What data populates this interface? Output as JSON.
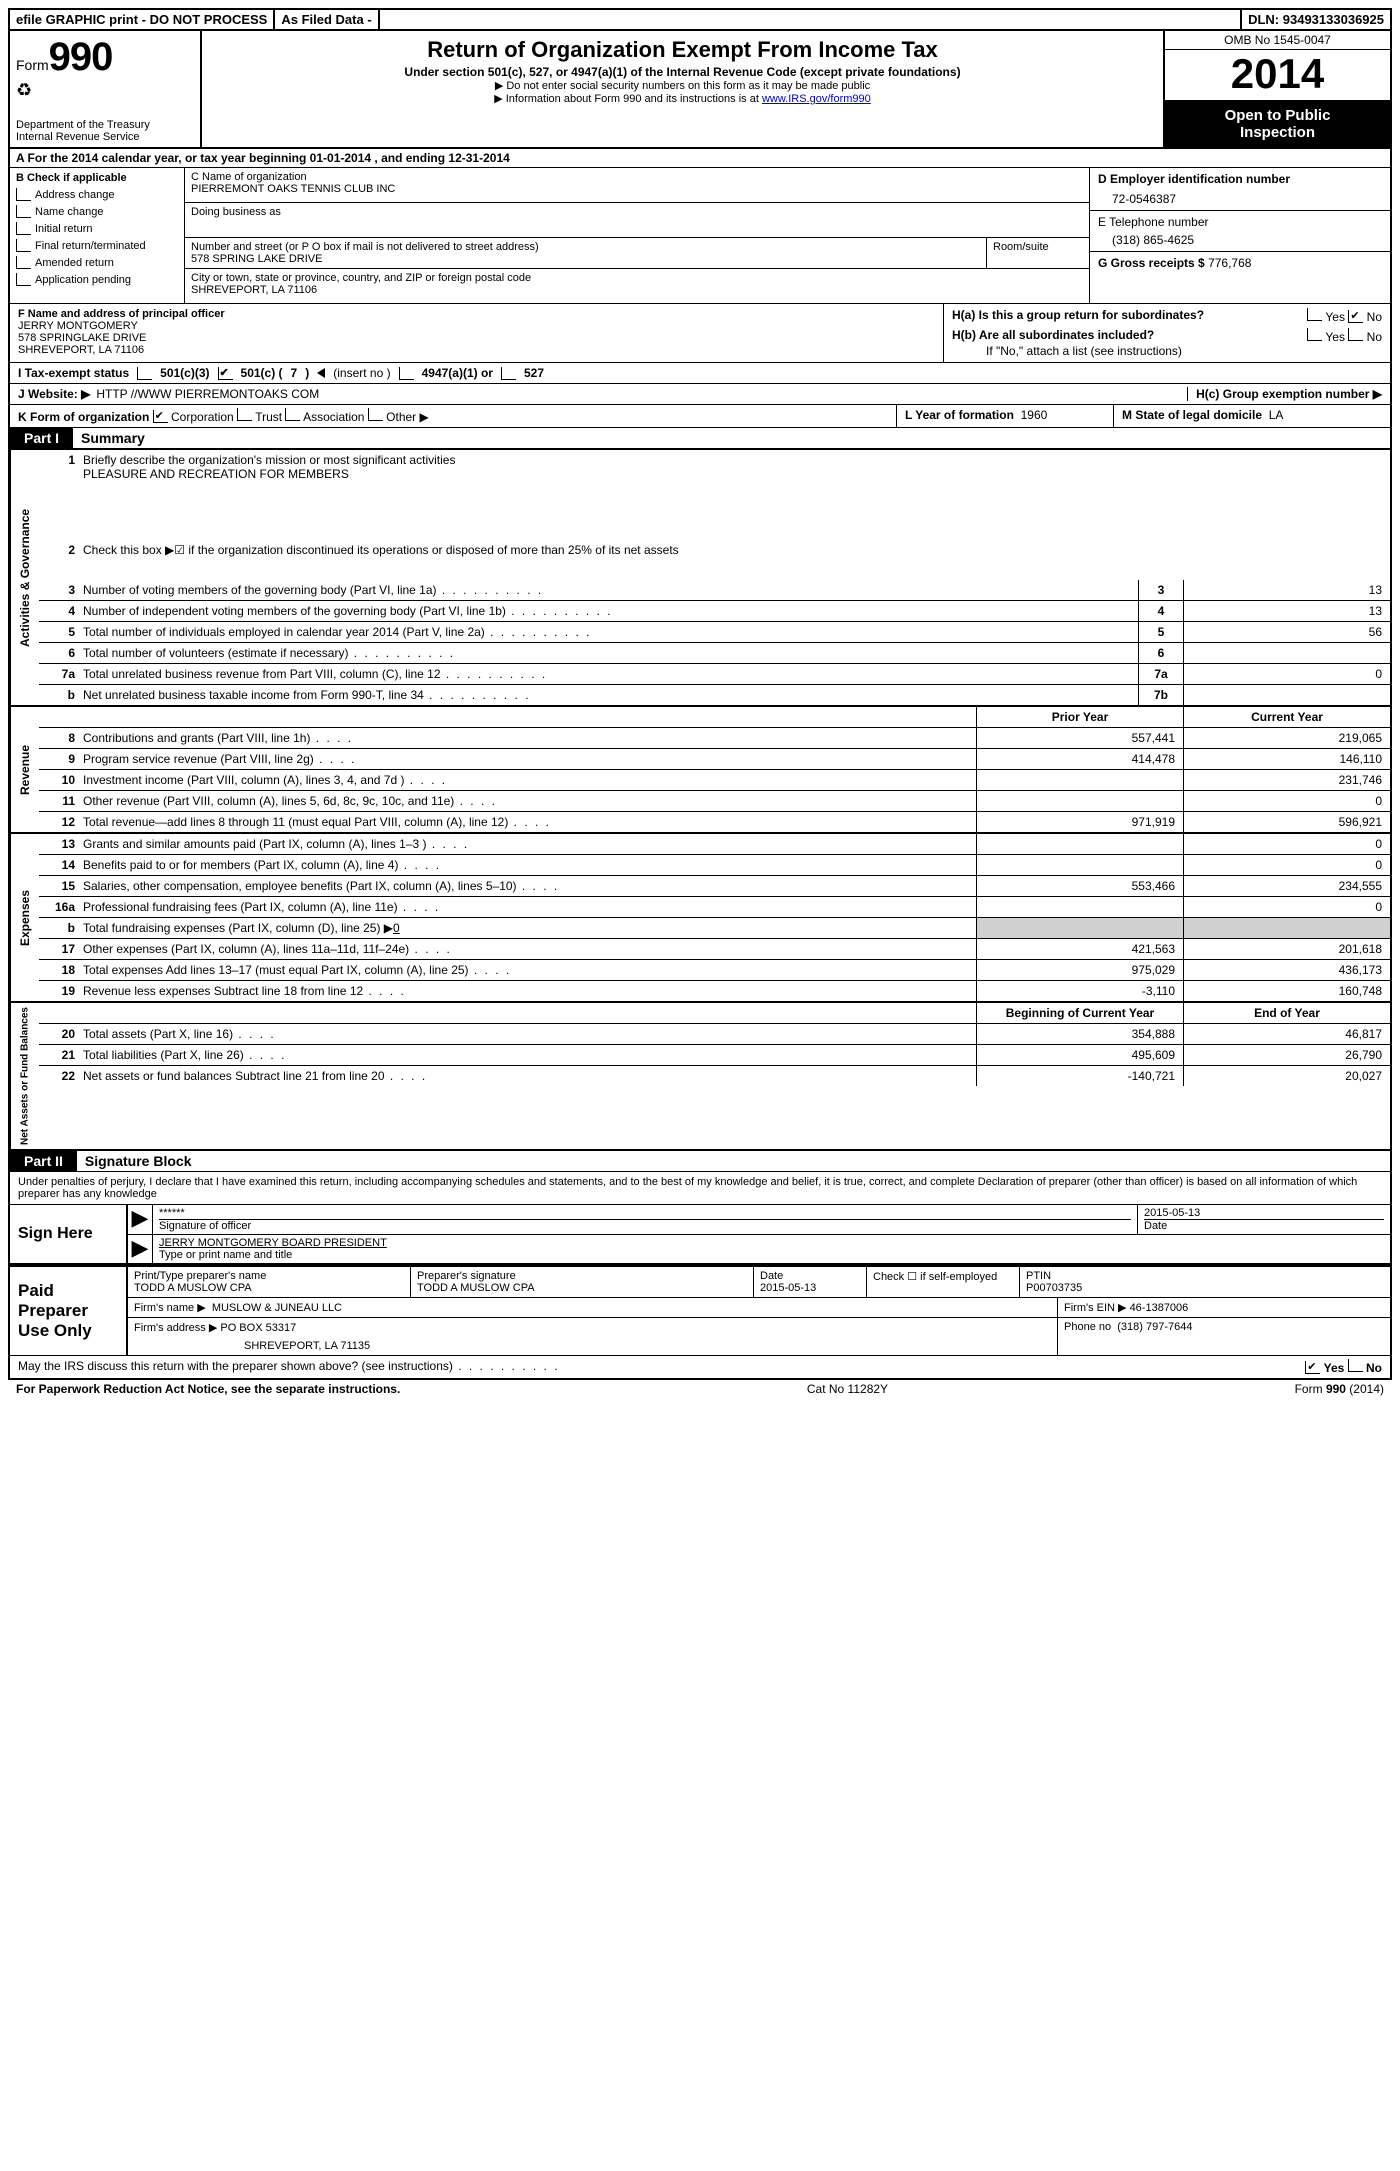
{
  "top_bar": {
    "efile": "efile GRAPHIC print - DO NOT PROCESS",
    "asfiled": "As Filed Data -",
    "dln_label": "DLN:",
    "dln": "93493133036925"
  },
  "header": {
    "form_label": "Form",
    "form_number": "990",
    "dept": "Department of the Treasury",
    "irs": "Internal Revenue Service",
    "title": "Return of Organization Exempt From Income Tax",
    "subtitle": "Under section 501(c), 527, or 4947(a)(1) of the Internal Revenue Code (except private foundations)",
    "note1": "▶ Do not enter social security numbers on this form as it may be made public",
    "note2_prefix": "▶ Information about Form 990 and its instructions is at ",
    "note2_link": "www.IRS.gov/form990",
    "omb": "OMB No 1545-0047",
    "year": "2014",
    "open1": "Open to Public",
    "open2": "Inspection"
  },
  "row_a": {
    "prefix": "A  For the 2014 calendar year, or tax year beginning ",
    "begin": "01-01-2014",
    "mid": "   , and ending ",
    "end": "12-31-2014"
  },
  "col_b": {
    "title": "B  Check if applicable",
    "items": [
      "Address change",
      "Name change",
      "Initial return",
      "Final return/terminated",
      "Amended return",
      "Application pending"
    ]
  },
  "col_c": {
    "name_label": "C Name of organization",
    "name": "PIERREMONT OAKS TENNIS CLUB INC",
    "dba_label": "Doing business as",
    "addr_label": "Number and street (or P O  box if mail is not delivered to street address)",
    "addr": "578 SPRING LAKE DRIVE",
    "room_label": "Room/suite",
    "city_label": "City or town, state or province, country, and ZIP or foreign postal code",
    "city": "SHREVEPORT, LA  71106"
  },
  "col_d": {
    "ein_label": "D Employer identification number",
    "ein": "72-0546387",
    "phone_label": "E Telephone number",
    "phone": "(318) 865-4625",
    "gross_label": "G Gross receipts $",
    "gross": "776,768"
  },
  "f_block": {
    "label": "F  Name and address of principal officer",
    "name": "JERRY MONTGOMERY",
    "addr1": "578 SPRINGLAKE DRIVE",
    "addr2": "SHREVEPORT, LA  71106"
  },
  "h_block": {
    "ha": "H(a)  Is this a group return for subordinates?",
    "hb": "H(b)  Are all subordinates included?",
    "hb_note": "If \"No,\" attach a list  (see instructions)",
    "hc": "H(c)  Group exemption number ▶",
    "yes": "Yes",
    "no": "No"
  },
  "line_i": {
    "label": "I  Tax-exempt status",
    "opt1": "501(c)(3)",
    "opt2_a": "501(c) (",
    "opt2_num": "7",
    "opt2_b": ") ",
    "insert": "(insert no )",
    "opt3": "4947(a)(1) or",
    "opt4": "527"
  },
  "line_j": {
    "label": "J  Website: ▶",
    "value": "HTTP //WWW PIERREMONTOAKS COM"
  },
  "line_k": {
    "label": "K Form of organization",
    "opts": [
      "Corporation",
      "Trust",
      "Association",
      "Other ▶"
    ],
    "l_label": "L Year of formation",
    "l_value": "1960",
    "m_label": "M State of legal domicile",
    "m_value": "LA"
  },
  "part1": {
    "tab": "Part I",
    "title": "Summary",
    "sections": {
      "gov": {
        "label": "Activities & Governance",
        "lines": [
          {
            "n": "1",
            "text": "Briefly describe the organization's mission or most significant activities",
            "extra": "PLEASURE AND RECREATION FOR MEMBERS"
          },
          {
            "n": "2",
            "text": "Check this box ▶☑ if the organization discontinued its operations or disposed of more than 25% of its net assets"
          },
          {
            "n": "3",
            "text": "Number of voting members of the governing body (Part VI, line 1a)",
            "box": "3",
            "val": "13"
          },
          {
            "n": "4",
            "text": "Number of independent voting members of the governing body (Part VI, line 1b)",
            "box": "4",
            "val": "13"
          },
          {
            "n": "5",
            "text": "Total number of individuals employed in calendar year 2014 (Part V, line 2a)",
            "box": "5",
            "val": "56"
          },
          {
            "n": "6",
            "text": "Total number of volunteers (estimate if necessary)",
            "box": "6",
            "val": ""
          },
          {
            "n": "7a",
            "text": "Total unrelated business revenue from Part VIII, column (C), line 12",
            "box": "7a",
            "val": "0"
          },
          {
            "n": "b",
            "text": "Net unrelated business taxable income from Form 990-T, line 34",
            "box": "7b",
            "val": ""
          }
        ]
      },
      "rev": {
        "label": "Revenue",
        "header_prior": "Prior Year",
        "header_curr": "Current Year",
        "lines": [
          {
            "n": "8",
            "text": "Contributions and grants (Part VIII, line 1h)",
            "prior": "557,441",
            "curr": "219,065"
          },
          {
            "n": "9",
            "text": "Program service revenue (Part VIII, line 2g)",
            "prior": "414,478",
            "curr": "146,110"
          },
          {
            "n": "10",
            "text": "Investment income (Part VIII, column (A), lines 3, 4, and 7d )",
            "prior": "",
            "curr": "231,746"
          },
          {
            "n": "11",
            "text": "Other revenue (Part VIII, column (A), lines 5, 6d, 8c, 9c, 10c, and 11e)",
            "prior": "",
            "curr": "0"
          },
          {
            "n": "12",
            "text": "Total revenue—add lines 8 through 11 (must equal Part VIII, column (A), line 12)",
            "prior": "971,919",
            "curr": "596,921"
          }
        ]
      },
      "exp": {
        "label": "Expenses",
        "lines": [
          {
            "n": "13",
            "text": "Grants and similar amounts paid (Part IX, column (A), lines 1–3 )",
            "prior": "",
            "curr": "0"
          },
          {
            "n": "14",
            "text": "Benefits paid to or for members (Part IX, column (A), line 4)",
            "prior": "",
            "curr": "0"
          },
          {
            "n": "15",
            "text": "Salaries, other compensation, employee benefits (Part IX, column (A), lines 5–10)",
            "prior": "553,466",
            "curr": "234,555"
          },
          {
            "n": "16a",
            "text": "Professional fundraising fees (Part IX, column (A), line 11e)",
            "prior": "",
            "curr": "0"
          },
          {
            "n": "b",
            "text": "Total fundraising expenses (Part IX, column (D), line 25) ▶",
            "inline": "0",
            "prior": "grey",
            "curr": "grey"
          },
          {
            "n": "17",
            "text": "Other expenses (Part IX, column (A), lines 11a–11d, 11f–24e)",
            "prior": "421,563",
            "curr": "201,618"
          },
          {
            "n": "18",
            "text": "Total expenses  Add lines 13–17 (must equal Part IX, column (A), line 25)",
            "prior": "975,029",
            "curr": "436,173"
          },
          {
            "n": "19",
            "text": "Revenue less expenses  Subtract line 18 from line 12",
            "prior": "-3,110",
            "curr": "160,748"
          }
        ]
      },
      "net": {
        "label": "Net Assets or Fund Balances",
        "header_prior": "Beginning of Current Year",
        "header_curr": "End of Year",
        "lines": [
          {
            "n": "20",
            "text": "Total assets (Part X, line 16)",
            "prior": "354,888",
            "curr": "46,817"
          },
          {
            "n": "21",
            "text": "Total liabilities (Part X, line 26)",
            "prior": "495,609",
            "curr": "26,790"
          },
          {
            "n": "22",
            "text": "Net assets or fund balances  Subtract line 21 from line 20",
            "prior": "-140,721",
            "curr": "20,027"
          }
        ]
      }
    }
  },
  "part2": {
    "tab": "Part II",
    "title": "Signature Block",
    "perjury": "Under penalties of perjury, I declare that I have examined this return, including accompanying schedules and statements, and to the best of my knowledge and belief, it is true, correct, and complete  Declaration of preparer (other than officer) is based on all information of which preparer has any knowledge",
    "sign_here": "Sign Here",
    "sig_stars": "******",
    "sig_label": "Signature of officer",
    "sig_date": "2015-05-13",
    "date_label": "Date",
    "officer_name": "JERRY MONTGOMERY BOARD PRESIDENT",
    "officer_label": "Type or print name and title",
    "paid": "Paid Preparer Use Only",
    "prep_name_label": "Print/Type preparer's name",
    "prep_name": "TODD A MUSLOW CPA",
    "prep_sig_label": "Preparer's signature",
    "prep_sig": "TODD A MUSLOW CPA",
    "prep_date_label": "Date",
    "prep_date": "2015-05-13",
    "self_emp_label": "Check ☐ if self-employed",
    "ptin_label": "PTIN",
    "ptin": "P00703735",
    "firm_name_label": "Firm's name    ▶",
    "firm_name": "MUSLOW & JUNEAU LLC",
    "firm_ein_label": "Firm's EIN ▶",
    "firm_ein": "46-1387006",
    "firm_addr_label": "Firm's address ▶",
    "firm_addr1": "PO BOX 53317",
    "firm_addr2": "SHREVEPORT, LA  71135",
    "firm_phone_label": "Phone no",
    "firm_phone": "(318) 797-7644",
    "discuss": "May the IRS discuss this return with the preparer shown above? (see instructions)",
    "yes": "Yes",
    "no": "No"
  },
  "footer": {
    "left": "For Paperwork Reduction Act Notice, see the separate instructions.",
    "mid": "Cat No 11282Y",
    "right": "Form 990 (2014)"
  }
}
